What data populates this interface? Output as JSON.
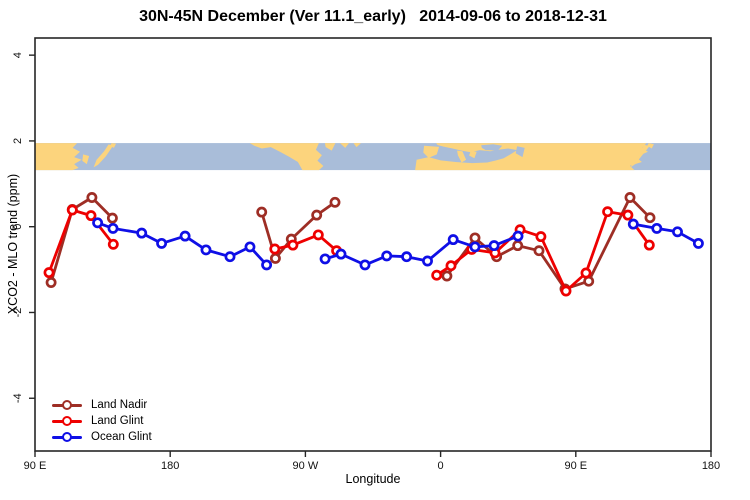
{
  "title": "30N-45N December (Ver 11.1_early)   2014-09-06 to 2018-12-31",
  "chart_data": {
    "type": "line",
    "title": "30N-45N December (Ver 11.1_early)   2014-09-06 to 2018-12-31",
    "xlabel": "Longitude",
    "ylabel": "XCO2 - MLO trend (ppm)",
    "x_axis": {
      "range": [
        90,
        540
      ],
      "ticks": [
        90,
        180,
        270,
        360,
        450,
        540
      ],
      "tick_labels": [
        "90 E",
        "180",
        "90 W",
        "0",
        "90 E",
        "180"
      ]
    },
    "y_axis": {
      "range": [
        -5.23,
        4.4
      ],
      "ticks": [
        -4,
        -2,
        0,
        2,
        4
      ],
      "tick_labels": [
        "-4",
        "-2",
        "0",
        "2",
        "4"
      ]
    },
    "grid": "off",
    "legend_position": "bottom-left",
    "map_band": {
      "top_value": 1.95,
      "bottom_value": 1.32,
      "ocean_color": "#a9bdd9",
      "land_color": "#fcd47d",
      "land": [
        {
          "name": "asia-west",
          "pts": [
            [
              90,
              0
            ],
            [
              118,
              0
            ],
            [
              115,
              0.18
            ],
            [
              120,
              0.32
            ],
            [
              116,
              0.52
            ],
            [
              121,
              0.62
            ],
            [
              116,
              0.78
            ],
            [
              119,
              0.92
            ],
            [
              115,
              1
            ],
            [
              90,
              1
            ]
          ]
        },
        {
          "name": "korea",
          "pts": [
            [
              122,
              0.42
            ],
            [
              126,
              0.48
            ],
            [
              124.5,
              0.78
            ],
            [
              121.5,
              0.66
            ]
          ]
        },
        {
          "name": "japan",
          "pts": [
            [
              139,
              0.05
            ],
            [
              142,
              0.1
            ],
            [
              137,
              0.5
            ],
            [
              132,
              0.8
            ],
            [
              129,
              0.9
            ],
            [
              131,
              0.62
            ],
            [
              136,
              0.3
            ]
          ]
        },
        {
          "name": "hokkaido",
          "pts": [
            [
              141,
              0
            ],
            [
              144,
              0.02
            ],
            [
              142.5,
              0.18
            ],
            [
              140,
              0.1
            ]
          ]
        },
        {
          "name": "north-america",
          "pts": [
            [
              233,
              0
            ],
            [
              279,
              0
            ],
            [
              277,
              0.25
            ],
            [
              281,
              0.45
            ],
            [
              278,
              0.65
            ],
            [
              282,
              0.85
            ],
            [
              279,
              1
            ],
            [
              268,
              1
            ],
            [
              265,
              0.7
            ],
            [
              259,
              0.5
            ],
            [
              253,
              0.32
            ],
            [
              247,
              0.15
            ],
            [
              241,
              0.2
            ],
            [
              236,
              0.1
            ]
          ]
        },
        {
          "name": "ne-coast",
          "pts": [
            [
              283,
              0
            ],
            [
              290,
              0
            ],
            [
              287.5,
              0.28
            ],
            [
              283.5,
              0.15
            ]
          ]
        },
        {
          "name": "nova-scotia",
          "pts": [
            [
              293,
              0
            ],
            [
              299,
              0
            ],
            [
              296.5,
              0.18
            ]
          ]
        },
        {
          "name": "newfoundland",
          "pts": [
            [
              302,
              0
            ],
            [
              307,
              0
            ],
            [
              304,
              0.15
            ]
          ]
        },
        {
          "name": "iberia",
          "pts": [
            [
              349,
              0.1
            ],
            [
              359,
              0.14
            ],
            [
              357.5,
              0.42
            ],
            [
              352,
              0.55
            ],
            [
              348.5,
              0.35
            ]
          ]
        },
        {
          "name": "eurasia-africa",
          "pts": [
            [
              357,
              0
            ],
            [
              497,
              0
            ],
            [
              494,
              0.18
            ],
            [
              498,
              0.32
            ],
            [
              490,
              0.52
            ],
            [
              494,
              0.7
            ],
            [
              486,
              0.84
            ],
            [
              489,
              1
            ],
            [
              343,
              1
            ],
            [
              344,
              0.62
            ],
            [
              352,
              0.52
            ],
            [
              360,
              0.64
            ],
            [
              370,
              0.7
            ],
            [
              381,
              0.74
            ],
            [
              391,
              0.72
            ],
            [
              397,
              0.64
            ],
            [
              402,
              0.56
            ],
            [
              407,
              0.4
            ],
            [
              411,
              0.26
            ],
            [
              405,
              0.2
            ],
            [
              399,
              0.24
            ],
            [
              393,
              0.3
            ],
            [
              386,
              0.26
            ],
            [
              380,
              0.34
            ],
            [
              374,
              0.28
            ],
            [
              368,
              0.2
            ],
            [
              362,
              0.13
            ],
            [
              358,
              0.07
            ]
          ]
        },
        {
          "name": "italy",
          "pts": [
            [
              371,
              0.28
            ],
            [
              374.5,
              0.3
            ],
            [
              377,
              0.62
            ],
            [
              374,
              0.72
            ],
            [
              371.5,
              0.45
            ]
          ]
        },
        {
          "name": "greece",
          "pts": [
            [
              380,
              0.3
            ],
            [
              384,
              0.32
            ],
            [
              382.5,
              0.56
            ],
            [
              379,
              0.46
            ]
          ]
        },
        {
          "name": "japan-2",
          "pts": [
            [
              495.5,
              0.06
            ],
            [
              499,
              0.12
            ],
            [
              493.5,
              0.5
            ],
            [
              489.5,
              0.78
            ],
            [
              486.5,
              0.9
            ],
            [
              489,
              0.6
            ],
            [
              493,
              0.28
            ]
          ]
        },
        {
          "name": "hokkaido-2",
          "pts": [
            [
              498.5,
              0
            ],
            [
              502,
              0.04
            ],
            [
              500.5,
              0.2
            ],
            [
              497.5,
              0.1
            ]
          ]
        }
      ],
      "water": [
        {
          "name": "black-sea",
          "pts": [
            [
              387,
              0.08
            ],
            [
              395,
              0.04
            ],
            [
              401,
              0.1
            ],
            [
              398,
              0.28
            ],
            [
              390,
              0.26
            ],
            [
              387.5,
              0.18
            ]
          ]
        },
        {
          "name": "caspian-sea",
          "pts": [
            [
              411,
              0.12
            ],
            [
              416,
              0.18
            ],
            [
              414.5,
              0.52
            ],
            [
              410,
              0.38
            ],
            [
              410.5,
              0.22
            ]
          ]
        }
      ]
    },
    "series": [
      {
        "name": "Land Nadir",
        "color": "#9e2e25",
        "segments": [
          [
            [
              100.7,
              -1.3
            ],
            [
              114.8,
              0.4
            ],
            [
              127.9,
              0.68
            ],
            [
              141.5,
              0.2
            ]
          ],
          [
            [
              240.9,
              0.34
            ],
            [
              250.0,
              -0.74
            ],
            [
              260.6,
              -0.29
            ],
            [
              277.5,
              0.27
            ],
            [
              289.7,
              0.57
            ]
          ],
          [
            [
              364.2,
              -1.15
            ],
            [
              382.9,
              -0.26
            ],
            [
              397.3,
              -0.7
            ],
            [
              411.3,
              -0.44
            ],
            [
              425.5,
              -0.56
            ],
            [
              442.8,
              -1.45
            ],
            [
              458.6,
              -1.27
            ],
            [
              486.1,
              0.68
            ],
            [
              499.4,
              0.21
            ]
          ]
        ]
      },
      {
        "name": "Land Glint",
        "color": "#ee0000",
        "segments": [
          [
            [
              99.3,
              -1.07
            ],
            [
              114.8,
              0.39
            ],
            [
              127.3,
              0.26
            ],
            [
              142.1,
              -0.41
            ]
          ],
          [
            [
              249.6,
              -0.52
            ],
            [
              261.7,
              -0.43
            ],
            [
              278.6,
              -0.19
            ],
            [
              290.8,
              -0.56
            ]
          ],
          [
            [
              357.4,
              -1.13
            ],
            [
              366.9,
              -0.91
            ],
            [
              380.7,
              -0.53
            ],
            [
              396.2,
              -0.61
            ],
            [
              412.9,
              -0.07
            ],
            [
              426.8,
              -0.23
            ],
            [
              443.5,
              -1.5
            ],
            [
              456.8,
              -1.08
            ],
            [
              471.2,
              0.35
            ],
            [
              484.7,
              0.27
            ],
            [
              498.9,
              -0.43
            ]
          ]
        ]
      },
      {
        "name": "Ocean Glint",
        "color": "#0f0fe6",
        "segments": [
          [
            [
              131.7,
              0.09
            ],
            [
              141.9,
              -0.04
            ],
            [
              161.0,
              -0.15
            ],
            [
              174.3,
              -0.39
            ],
            [
              189.9,
              -0.22
            ],
            [
              203.8,
              -0.54
            ],
            [
              219.8,
              -0.7
            ],
            [
              233.1,
              -0.47
            ],
            [
              244.2,
              -0.89
            ]
          ],
          [
            [
              283.1,
              -0.75
            ],
            [
              293.7,
              -0.64
            ],
            [
              309.7,
              -0.89
            ],
            [
              324.1,
              -0.68
            ],
            [
              337.4,
              -0.7
            ],
            [
              351.3,
              -0.8
            ],
            [
              368.4,
              -0.3
            ],
            [
              382.9,
              -0.47
            ],
            [
              395.6,
              -0.44
            ],
            [
              411.5,
              -0.22
            ]
          ],
          [
            [
              488.3,
              0.06
            ],
            [
              503.9,
              -0.04
            ],
            [
              517.7,
              -0.12
            ],
            [
              531.6,
              -0.39
            ]
          ]
        ]
      }
    ]
  }
}
